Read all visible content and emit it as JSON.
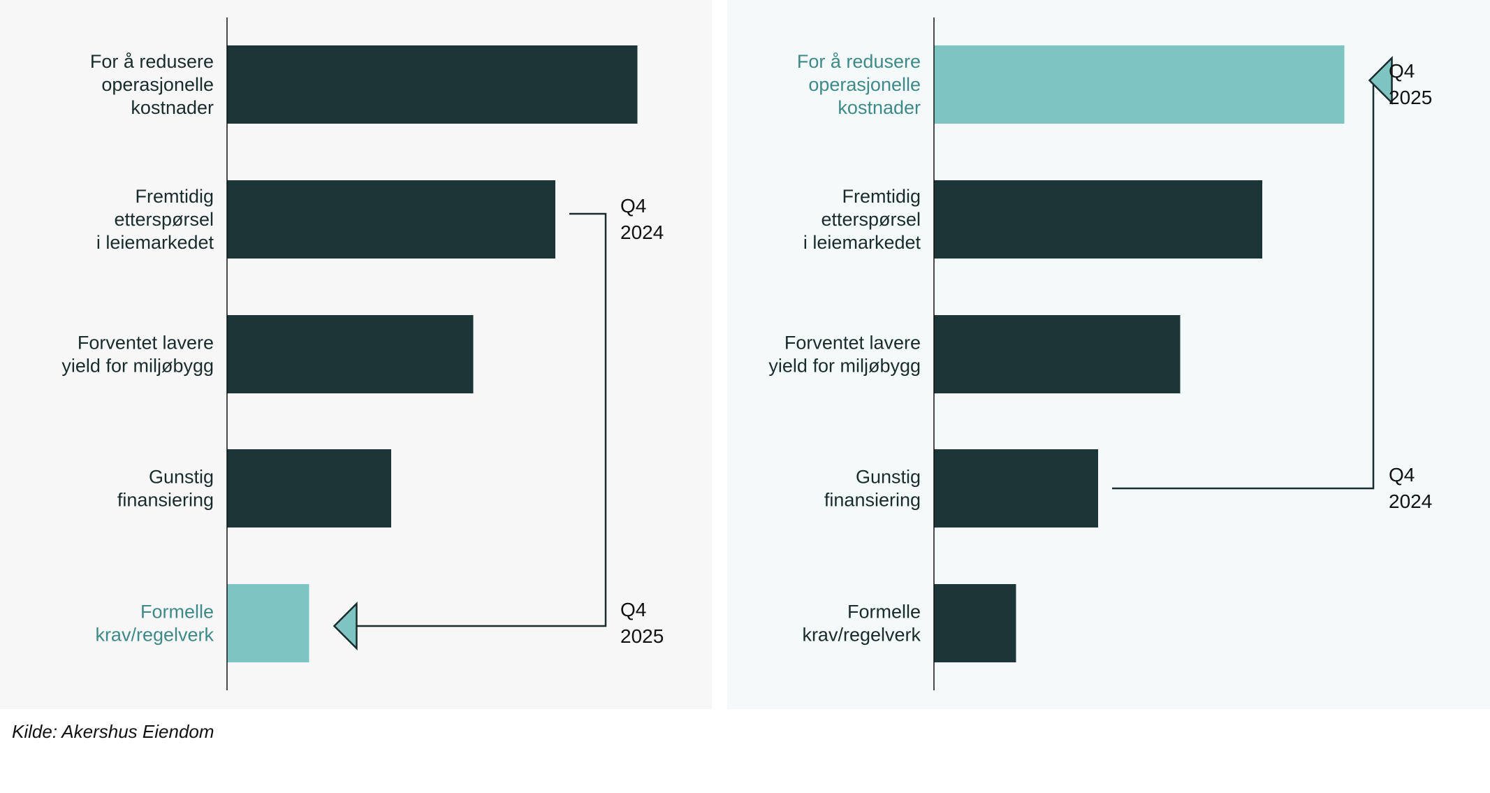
{
  "colors": {
    "bar_dark": "#1c3638",
    "bar_highlight": "#7ec4c2",
    "label_dark": "#1a2b2c",
    "label_highlight": "#3e8a88",
    "panel_left_bg": "#f7f7f7",
    "panel_right_bg": "#f4f9f9"
  },
  "chart_data": [
    {
      "type": "bar",
      "orientation": "horizontal",
      "categories": [
        [
          "For å redusere",
          "operasjonelle",
          "kostnader"
        ],
        [
          "Fremtidig",
          "etterspørsel",
          "i leiemarkedet"
        ],
        [
          "Forventet lavere",
          "yield for miljøbygg"
        ],
        [
          "Gunstig",
          "finansiering"
        ],
        [
          "Formelle",
          "krav/regelverk"
        ]
      ],
      "values": [
        5,
        4,
        3,
        2,
        1
      ],
      "highlight_index": 4,
      "annotation": {
        "from_index": 1,
        "to_index": 4,
        "from_label": [
          "Q4",
          "2024"
        ],
        "to_label": [
          "Q4",
          "2025"
        ]
      },
      "xlim": [
        0,
        6
      ],
      "grid": false
    },
    {
      "type": "bar",
      "orientation": "horizontal",
      "categories": [
        [
          "For å redusere",
          "operasjonelle",
          "kostnader"
        ],
        [
          "Fremtidig",
          "etterspørsel",
          "i leiemarkedet"
        ],
        [
          "Forventet lavere",
          "yield for miljøbygg"
        ],
        [
          "Gunstig",
          "finansiering"
        ],
        [
          "Formelle",
          "krav/regelverk"
        ]
      ],
      "values": [
        5,
        4,
        3,
        2,
        1
      ],
      "highlight_index": 0,
      "annotation": {
        "from_index": 3,
        "to_index": 0,
        "from_label": [
          "Q4",
          "2024"
        ],
        "to_label": [
          "Q4",
          "2025"
        ]
      },
      "xlim": [
        0,
        6
      ],
      "grid": false
    }
  ],
  "source": "Kilde: Akershus Eiendom"
}
